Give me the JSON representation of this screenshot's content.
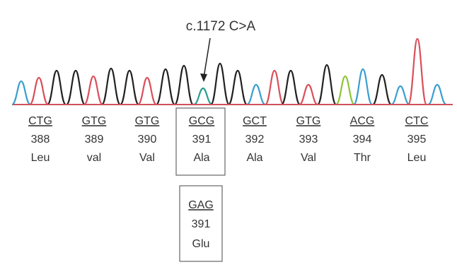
{
  "annotation": "c.1172 C>A",
  "codons": [
    {
      "codon": "CTG",
      "position": "388",
      "amino_acid": "Leu"
    },
    {
      "codon": "GTG",
      "position": "389",
      "amino_acid": "val"
    },
    {
      "codon": "GTG",
      "position": "390",
      "amino_acid": "Val"
    },
    {
      "codon": "GCG",
      "position": "391",
      "amino_acid": "Ala"
    },
    {
      "codon": "GCT",
      "position": "392",
      "amino_acid": "Ala"
    },
    {
      "codon": "GTG",
      "position": "393",
      "amino_acid": "Val"
    },
    {
      "codon": "ACG",
      "position": "394",
      "amino_acid": "Thr"
    },
    {
      "codon": "CTC",
      "position": "395",
      "amino_acid": "Leu"
    }
  ],
  "mutant": {
    "codon": "GAG",
    "position": "391",
    "amino_acid": "Glu"
  }
}
